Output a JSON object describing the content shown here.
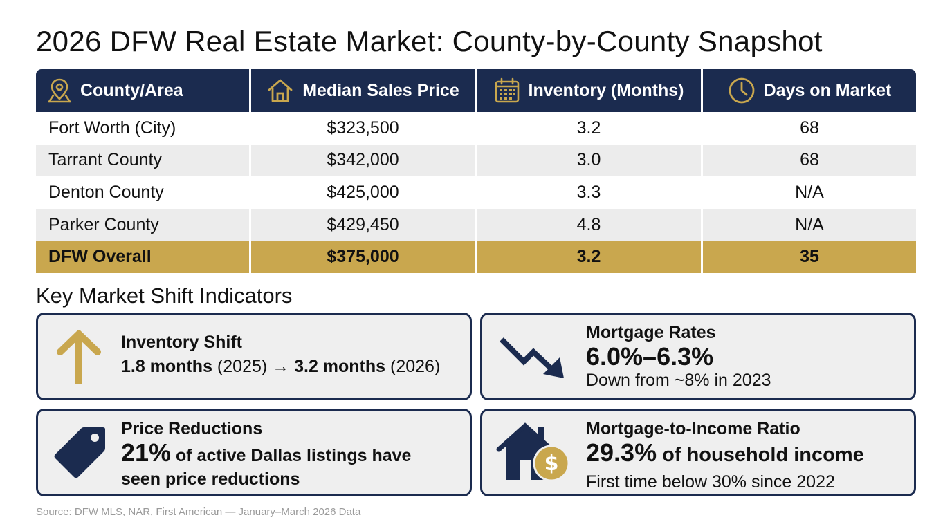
{
  "title": "2026 DFW Real Estate Market: County-by-County Snapshot",
  "table": {
    "headers": [
      {
        "label": "County/Area",
        "icon": "map-pin-icon"
      },
      {
        "label": "Median Sales Price",
        "icon": "house-icon"
      },
      {
        "label": "Inventory (Months)",
        "icon": "calendar-icon"
      },
      {
        "label": "Days on Market",
        "icon": "clock-icon"
      }
    ],
    "rows": [
      [
        "Fort Worth (City)",
        "$323,500",
        "3.2",
        "68"
      ],
      [
        "Tarrant County",
        "$342,000",
        "3.0",
        "68"
      ],
      [
        "Denton County",
        "$425,000",
        "3.3",
        "N/A"
      ],
      [
        "Parker County",
        "$429,450",
        "4.8",
        "N/A"
      ]
    ],
    "total": [
      "DFW Overall",
      "$375,000",
      "3.2",
      "35"
    ]
  },
  "indicators_title": "Key Market Shift Indicators",
  "indicators": {
    "inventory": {
      "icon": "arrow-up-icon",
      "label": "Inventory Shift",
      "from_value": "1.8 months",
      "from_year": " (2025) → ",
      "to_value": "3.2 months",
      "to_year": " (2026)"
    },
    "mortgage": {
      "icon": "trend-down-icon",
      "label": "Mortgage Rates",
      "value": "6.0%–6.3%",
      "note": "Down from ~8% in 2023"
    },
    "price": {
      "icon": "price-tag-icon",
      "label": "Price Reductions",
      "value": "21%",
      "text1": " of active Dallas listings have",
      "text2": "seen price reductions"
    },
    "ratio": {
      "icon": "house-dollar-icon",
      "label": "Mortgage-to-Income Ratio",
      "value": "29.3%",
      "text": " of household income",
      "note": "First time below 30% since 2022"
    }
  },
  "colors": {
    "navy": "#1b2b4f",
    "gold": "#c9a74e"
  },
  "source": "Source: DFW MLS, NAR, First American — January–March 2026 Data"
}
